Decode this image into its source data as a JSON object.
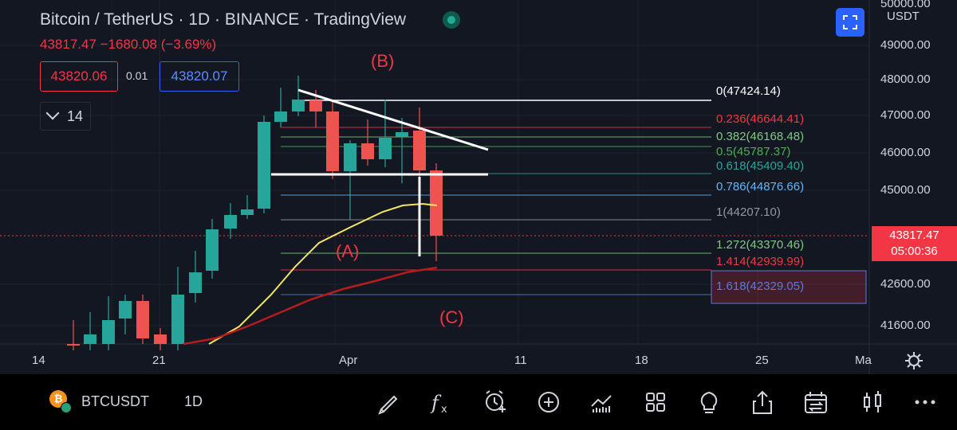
{
  "header": {
    "title": "Bitcoin / TetherUS · 1D · BINANCE · TradingView",
    "quote": "43817.47  −1680.08 (−3.69%)",
    "bid": "43820.06",
    "spread": "0.01",
    "ask": "43820.07",
    "interval_chevron_icon": "chevron-down-icon",
    "interval_value": "14",
    "currency": "USDT",
    "fullscreen_icon": "fullscreen-icon"
  },
  "price_axis": [
    "50000.00",
    "49000.00",
    "48000.00",
    "47000.00",
    "46000.00",
    "45000.00",
    "42600.00",
    "41600.00"
  ],
  "current_price": {
    "value": "43817.47",
    "countdown": "05:00:36"
  },
  "date_axis": [
    "14",
    "21",
    "Apr",
    "11",
    "18",
    "25",
    "Ma"
  ],
  "fib_levels": [
    {
      "label": "0(47424.14)",
      "color": "#ffffff"
    },
    {
      "label": "0.236(46644.41)",
      "color": "#f23645"
    },
    {
      "label": "0.382(46168.48)",
      "color": "#81c784"
    },
    {
      "label": "0.5(45787.37)",
      "color": "#4caf50"
    },
    {
      "label": "0.618(45409.40)",
      "color": "#26a69a"
    },
    {
      "label": "0.786(44876.66)",
      "color": "#64b5f6"
    },
    {
      "label": "1(44207.10)",
      "color": "#9598a1"
    },
    {
      "label": "1.272(43370.46)",
      "color": "#81c784"
    },
    {
      "label": "1.414(42939.99)",
      "color": "#f23645"
    },
    {
      "label": "1.618(42329.05)",
      "color": "#5b7bd5"
    }
  ],
  "waves": {
    "a": "(A)",
    "b": "(B)",
    "c": "(C)"
  },
  "colors": {
    "up": "#26a69a",
    "down": "#ef5350",
    "ma_fast": "#f5e663",
    "ma_slow": "#b71c1c"
  },
  "toolbar": {
    "symbol": "BTCUSDT",
    "timeframe": "1D",
    "icons": [
      "draw-icon",
      "indicators-icon",
      "alerts-icon",
      "add-icon",
      "compare-icon",
      "layouts-icon",
      "ideas-icon",
      "share-icon",
      "replay-icon",
      "chart-type-icon",
      "more-icon"
    ]
  },
  "settings_icon": "settings-icon",
  "btc_logo_letter": "₿"
}
